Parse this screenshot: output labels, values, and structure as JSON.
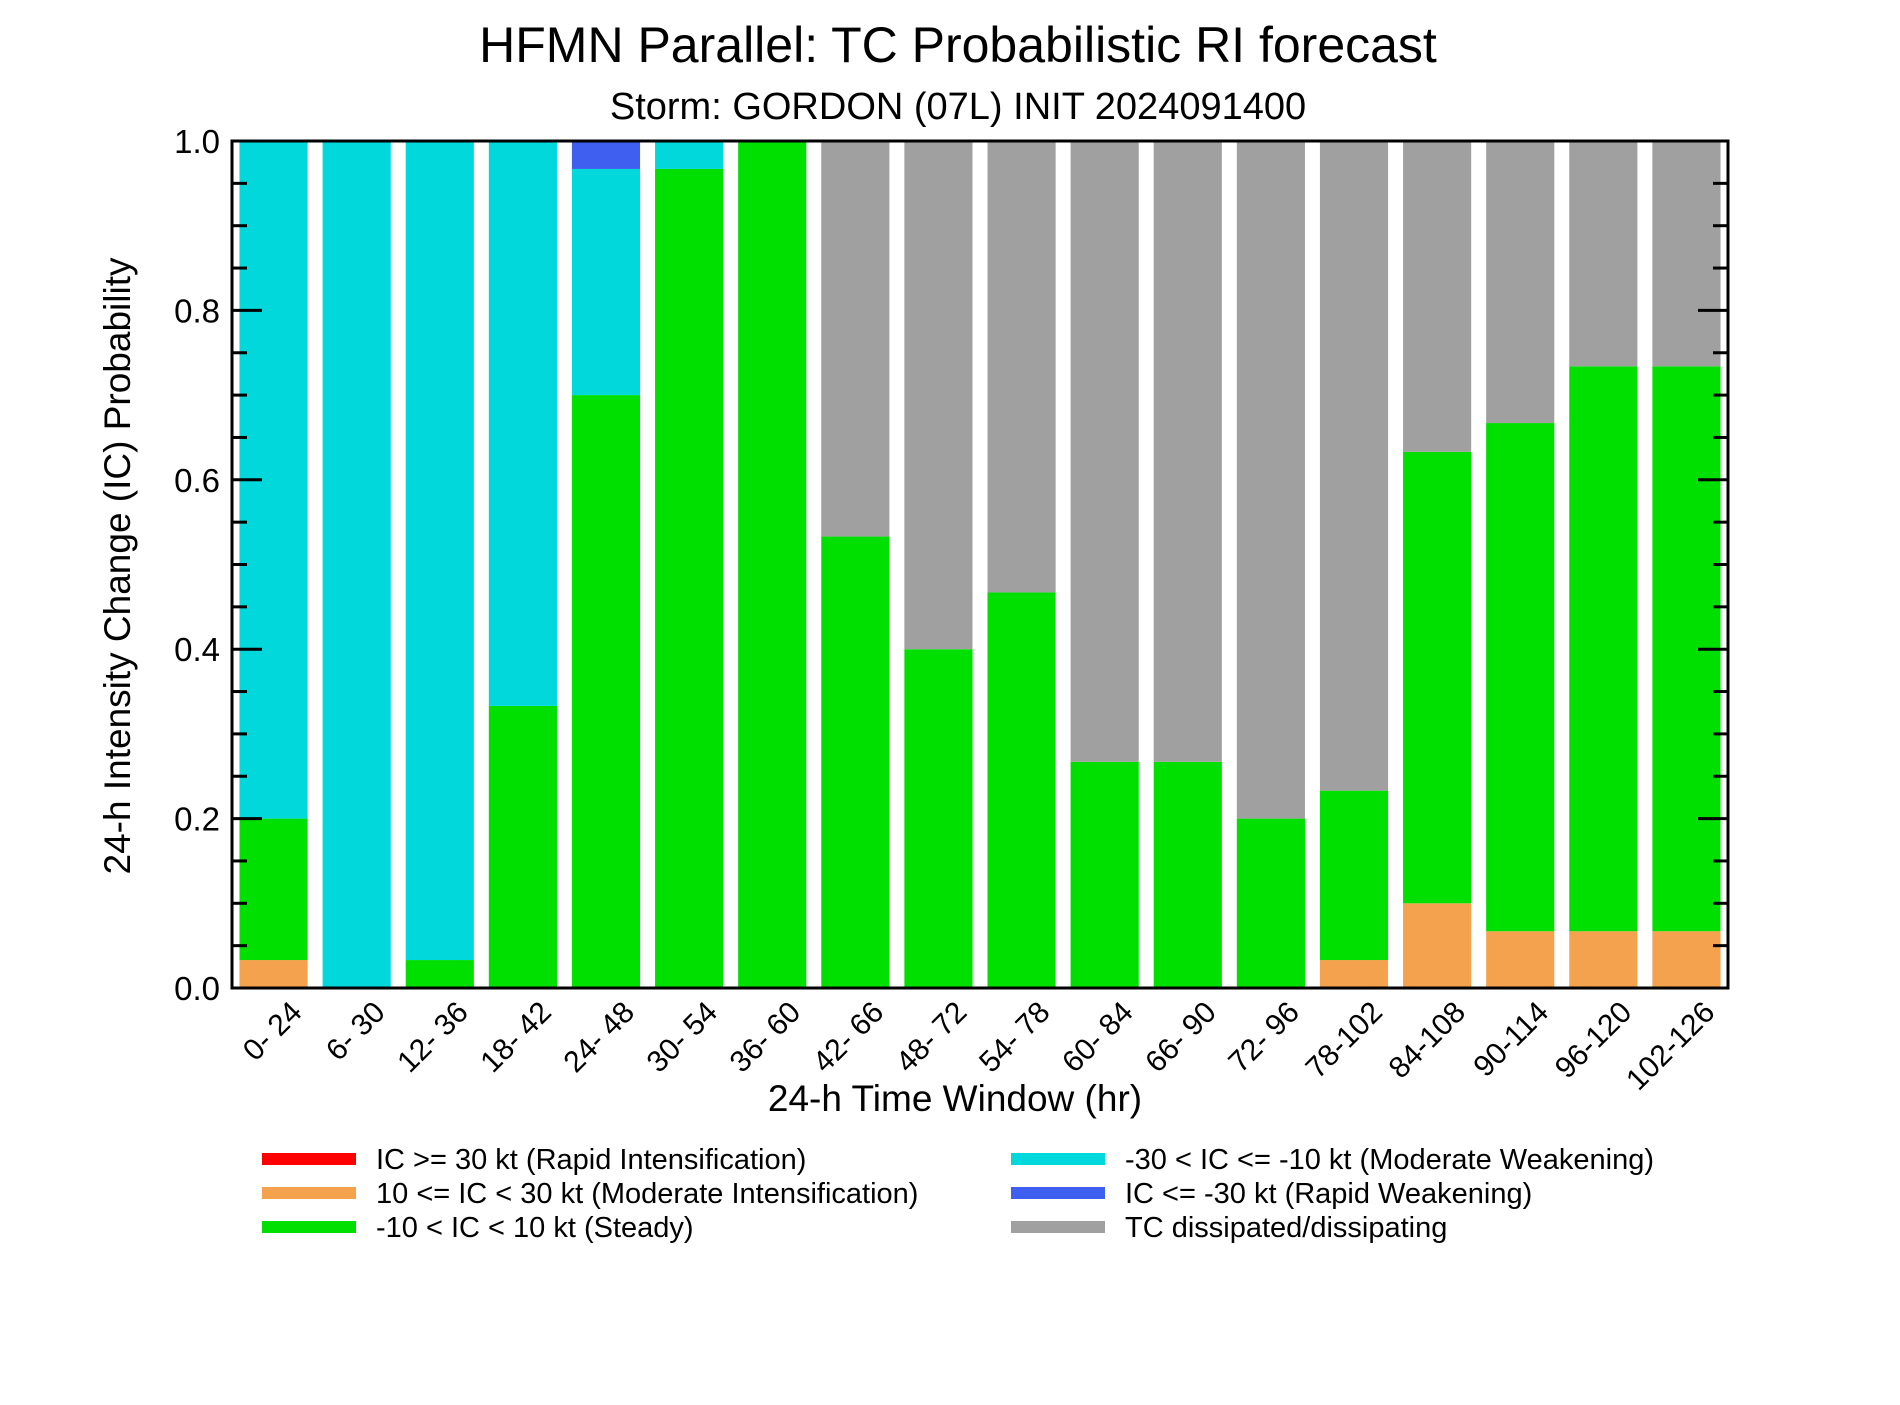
{
  "chart_data": {
    "type": "bar",
    "stacked": true,
    "title": "HFMN Parallel: TC Probabilistic RI forecast",
    "subtitle": "Storm: GORDON (07L) INIT 2024091400",
    "xlabel": "24-h Time Window (hr)",
    "ylabel": "24-h Intensity Change (IC) Probability",
    "ylim": [
      0,
      1.0
    ],
    "yticks": [
      "0.0",
      "0.2",
      "0.4",
      "0.6",
      "0.8",
      "1.0"
    ],
    "grid": false,
    "legend_position": "bottom",
    "categories": [
      "0- 24",
      "6- 30",
      "12- 36",
      "18- 42",
      "24- 48",
      "30- 54",
      "36- 60",
      "42- 66",
      "48- 72",
      "54- 78",
      "60- 84",
      "66- 90",
      "72- 96",
      "78-102",
      "84-108",
      "90-114",
      "96-120",
      "102-126"
    ],
    "series": [
      {
        "name": "IC >= 30 kt (Rapid Intensification)",
        "color": "#ff0000",
        "values": [
          0,
          0,
          0,
          0,
          0,
          0,
          0,
          0,
          0,
          0,
          0,
          0,
          0,
          0,
          0,
          0,
          0,
          0
        ]
      },
      {
        "name": "10 <= IC < 30 kt (Moderate Intensification)",
        "color": "#f4a24d",
        "values": [
          0.033,
          0,
          0,
          0,
          0,
          0,
          0,
          0,
          0,
          0,
          0,
          0,
          0,
          0.033,
          0.1,
          0.067,
          0.067,
          0.067
        ]
      },
      {
        "name": "-10 < IC < 10 kt (Steady)",
        "color": "#00e000",
        "values": [
          0.167,
          0,
          0.033,
          0.333,
          0.7,
          0.967,
          1.0,
          0.533,
          0.4,
          0.467,
          0.267,
          0.267,
          0.2,
          0.2,
          0.533,
          0.6,
          0.667,
          0.667
        ]
      },
      {
        "name": "-30 < IC <= -10 kt (Moderate Weakening)",
        "color": "#00d8dc",
        "values": [
          0.8,
          1.0,
          0.967,
          0.667,
          0.267,
          0.033,
          0,
          0,
          0,
          0,
          0,
          0,
          0,
          0,
          0,
          0,
          0,
          0
        ]
      },
      {
        "name": "IC <= -30 kt (Rapid Weakening)",
        "color": "#3f5ff0",
        "values": [
          0,
          0,
          0,
          0,
          0.033,
          0,
          0,
          0,
          0,
          0,
          0,
          0,
          0,
          0,
          0,
          0,
          0,
          0
        ]
      },
      {
        "name": "TC dissipated/dissipating",
        "color": "#a0a0a0",
        "values": [
          0,
          0,
          0,
          0,
          0,
          0,
          0,
          0.467,
          0.6,
          0.533,
          0.733,
          0.733,
          0.8,
          0.767,
          0.367,
          0.333,
          0.267,
          0.267
        ]
      }
    ],
    "legend_order": [
      0,
      1,
      2,
      3,
      4,
      5
    ]
  }
}
